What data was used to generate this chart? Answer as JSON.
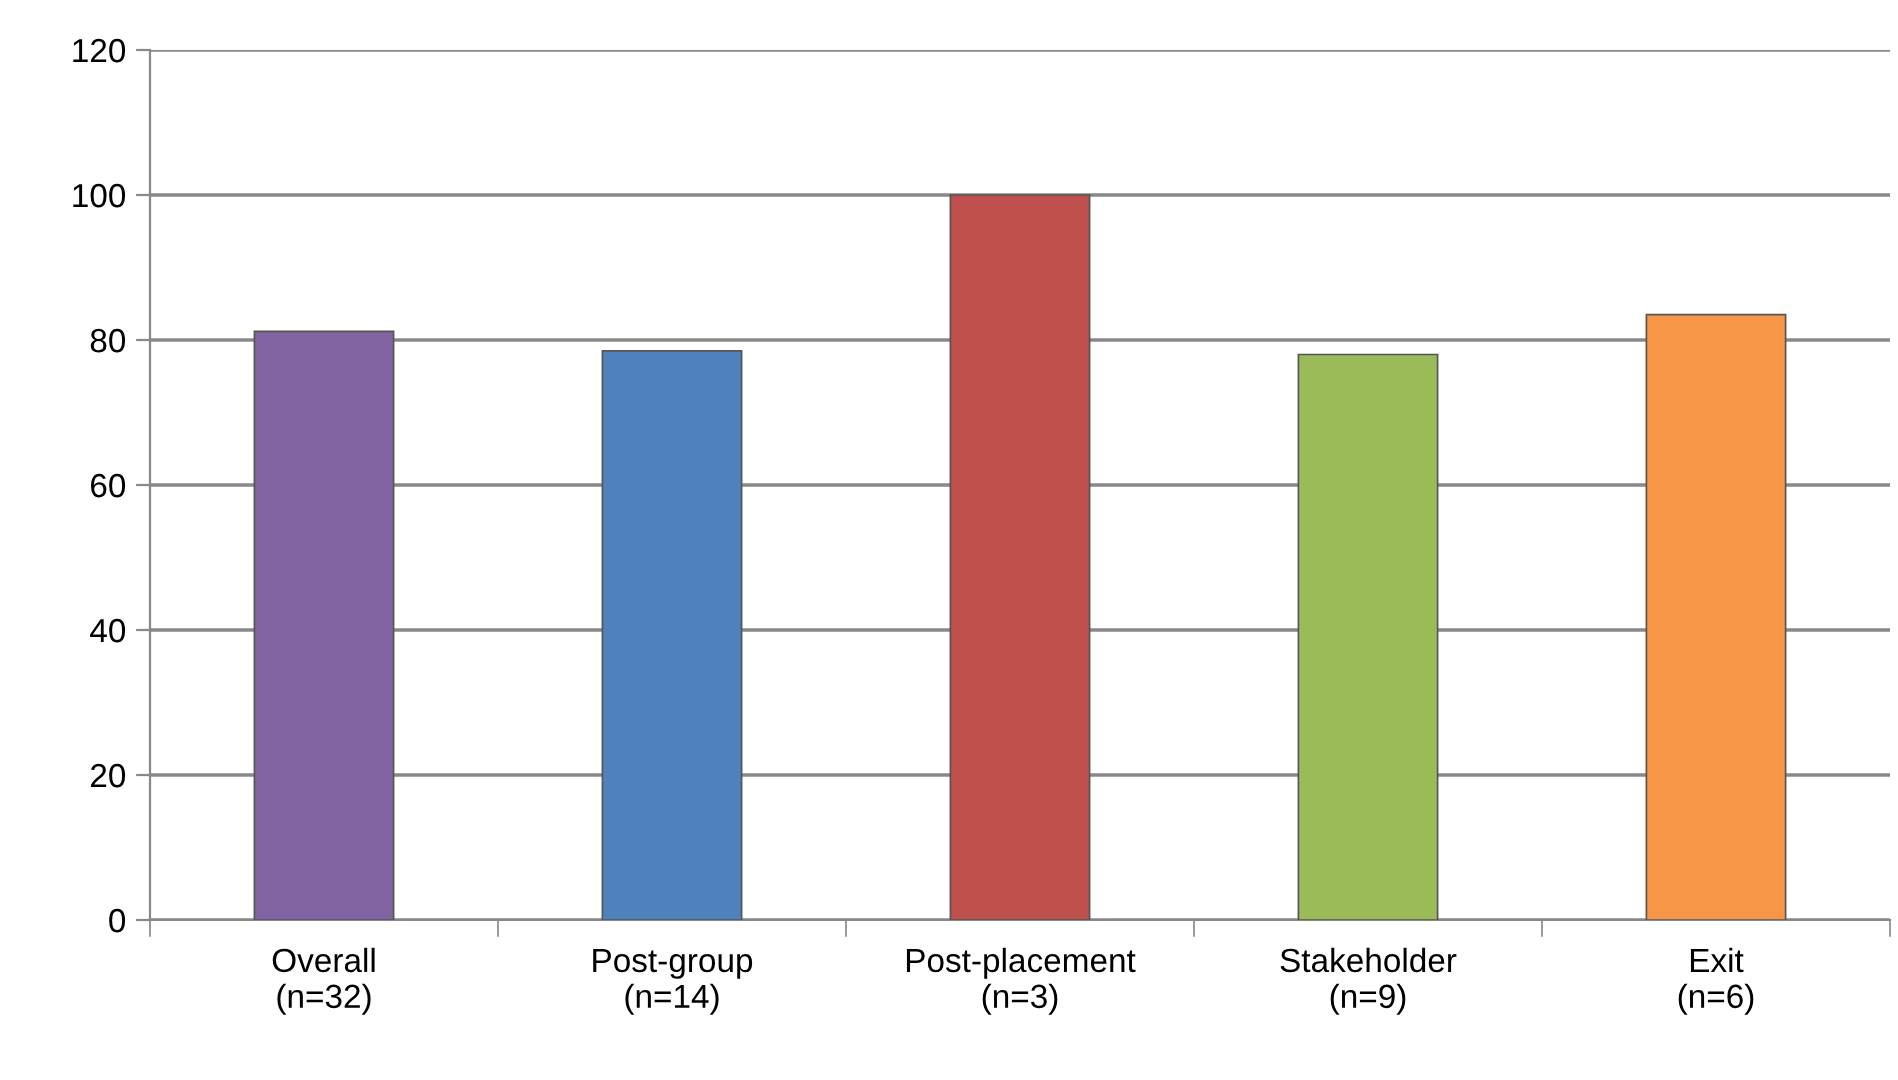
{
  "chart_data": {
    "type": "bar",
    "categories": [
      "Overall\n(n=32)",
      "Post-group\n(n=14)",
      "Post-placement\n(n=3)",
      "Stakeholder\n(n=9)",
      "Exit\n(n=6)"
    ],
    "values": [
      81.2,
      78.5,
      100,
      78,
      83.5
    ],
    "colors": [
      "#8064a2",
      "#4f81bd",
      "#c0504d",
      "#9bbb59",
      "#f79646"
    ],
    "ylim": [
      0,
      120
    ],
    "yticks": [
      0,
      20,
      40,
      60,
      80,
      100,
      120
    ],
    "grid": "y",
    "legend": false
  }
}
